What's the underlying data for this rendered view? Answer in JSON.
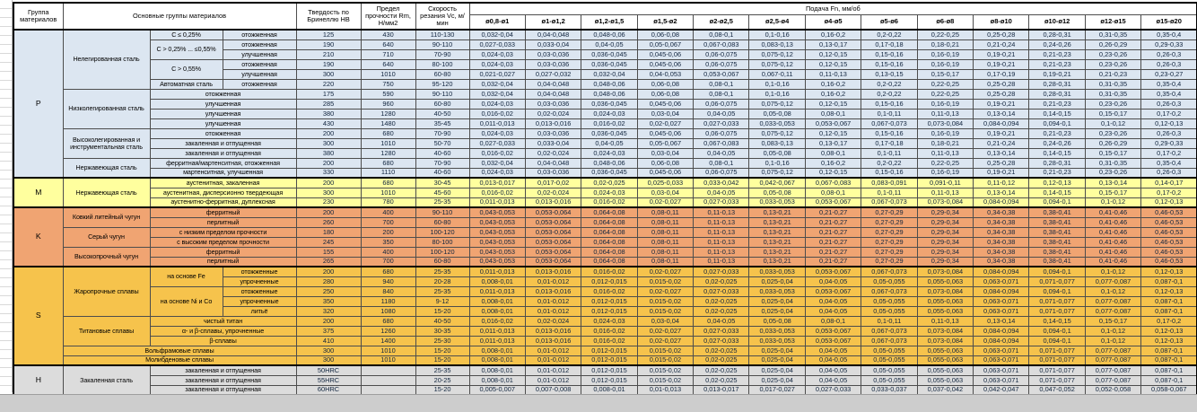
{
  "table": {
    "header": {
      "col_group": "Группа материалов",
      "col_main": "Основные группы материалов",
      "col_hardness": "Твердость по Бринеллю HB",
      "col_strength": "Предел прочности Rm, Н/мм2",
      "col_speed": "Скорость резания Vc, м/мин",
      "feed_title": "Подача Fn, мм/об",
      "feed_cols": [
        "ø0,8-ø1",
        "ø1-ø1,2",
        "ø1,2-ø1,5",
        "ø1,5-ø2",
        "ø2-ø2,5",
        "ø2,5-ø4",
        "ø4-ø5",
        "ø5-ø6",
        "ø6-ø8",
        "ø8-ø10",
        "ø10-ø12",
        "ø12-ø15",
        "ø15-ø20"
      ]
    },
    "colors": {
      "P": "#dce6f1",
      "M": "#ffff9e",
      "K": "#f0a472",
      "S": "#f6c34c",
      "H": "#dcdcdc"
    },
    "feed_patterns": {
      "A": [
        "0,032-0,04",
        "0,04-0,048",
        "0,048-0,06",
        "0,06-0,08",
        "0,08-0,1",
        "0,1-0,16",
        "0,16-0,2",
        "0,2-0,22",
        "0,22-0,25",
        "0,25-0,28",
        "0,28-0,31",
        "0,31-0,35",
        "0,35-0,4"
      ],
      "B": [
        "0,027-0,033",
        "0,033-0,04",
        "0,04-0,05",
        "0,05-0,067",
        "0,067-0,083",
        "0,083-0,13",
        "0,13-0,17",
        "0,17-0,18",
        "0,18-0,21",
        "0,21-0,24",
        "0,24-0,26",
        "0,26-0,29",
        "0,29-0,33"
      ],
      "C": [
        "0,024-0,03",
        "0,03-0,036",
        "0,036-0,045",
        "0,045-0,06",
        "0,06-0,075",
        "0,075-0,12",
        "0,12-0,15",
        "0,15-0,16",
        "0,16-0,19",
        "0,19-0,21",
        "0,21-0,23",
        "0,23-0,26",
        "0,26-0,3"
      ],
      "D": [
        "0,021-0,027",
        "0,027-0,032",
        "0,032-0,04",
        "0,04-0,053",
        "0,053-0,067",
        "0,067-0,11",
        "0,11-0,13",
        "0,13-0,15",
        "0,15-0,17",
        "0,17-0,19",
        "0,19-0,21",
        "0,21-0,23",
        "0,23-0,27"
      ],
      "E": [
        "0,016-0,02",
        "0,02-0,024",
        "0,024-0,03",
        "0,03-0,04",
        "0,04-0,05",
        "0,05-0,08",
        "0,08-0,1",
        "0,1-0,11",
        "0,11-0,13",
        "0,13-0,14",
        "0,14-0,15",
        "0,15-0,17",
        "0,17-0,2"
      ],
      "F": [
        "0,011-0,013",
        "0,013-0,016",
        "0,016-0,02",
        "0,02-0,027",
        "0,027-0,033",
        "0,033-0,053",
        "0,053-0,067",
        "0,067-0,073",
        "0,073-0,084",
        "0,084-0,094",
        "0,094-0,1",
        "0,1-0,12",
        "0,12-0,13"
      ],
      "G": [
        "0,013-0,017",
        "0,017-0,02",
        "0,02-0,025",
        "0,025-0,033",
        "0,033-0,042",
        "0,042-0,067",
        "0,067-0,083",
        "0,083-0,091",
        "0,091-0,11",
        "0,11-0,12",
        "0,12-0,13",
        "0,13-0,14",
        "0,14-0,17"
      ],
      "H": [
        "0,008-0,01",
        "0,01-0,012",
        "0,012-0,015",
        "0,015-0,02",
        "0,02-0,025",
        "0,025-0,04",
        "0,04-0,05",
        "0,05-0,055",
        "0,055-0,063",
        "0,063-0,071",
        "0,071-0,077",
        "0,077-0,087",
        "0,087-0,1"
      ],
      "K": [
        "0,043-0,053",
        "0,053-0,064",
        "0,064-0,08",
        "0,08-0,11",
        "0,11-0,13",
        "0,13-0,21",
        "0,21-0,27",
        "0,27-0,29",
        "0,29-0,34",
        "0,34-0,38",
        "0,38-0,41",
        "0,41-0,46",
        "0,46-0,53"
      ],
      "I": [
        "0,005-0,007",
        "0,007-0,008",
        "0,008-0,01",
        "0,01-0,013",
        "0,013-0,017",
        "0,017-0,027",
        "0,027-0,033",
        "0,033-0,037",
        "0,037-0,042",
        "0,042-0,047",
        "0,047-0,052",
        "0,052-0,058",
        "0,058-0,067"
      ]
    },
    "rows": [
      {
        "sec": "P",
        "top": true,
        "lead": [
          {
            "t": "P",
            "rs": 15,
            "grp": true
          },
          {
            "t": "Нелегированная сталь",
            "rs": 6
          },
          {
            "t": "C ≤ 0,25%"
          },
          {
            "t": "отожженная"
          }
        ],
        "hb": "125",
        "rm": "430",
        "vc": "110-130",
        "f": "A"
      },
      {
        "sec": "P",
        "lead": [
          {
            "t": "C > 0,25% ... ≤0,55%",
            "rs": 2
          },
          {
            "t": "отожженная"
          }
        ],
        "hb": "190",
        "rm": "640",
        "vc": "90-110",
        "f": "B"
      },
      {
        "sec": "P",
        "lead": [
          {
            "t": "улучшенная"
          }
        ],
        "hb": "210",
        "rm": "710",
        "vc": "70-90",
        "f": "C"
      },
      {
        "sec": "P",
        "lead": [
          {
            "t": "C > 0,55%",
            "rs": 2
          },
          {
            "t": "отожженная"
          }
        ],
        "hb": "190",
        "rm": "640",
        "vc": "80-100",
        "f": "C"
      },
      {
        "sec": "P",
        "lead": [
          {
            "t": "улучшенная"
          }
        ],
        "hb": "300",
        "rm": "1010",
        "vc": "60-80",
        "f": "D"
      },
      {
        "sec": "P",
        "lead": [
          {
            "t": "Автоматная сталь"
          },
          {
            "t": "отожженная"
          }
        ],
        "hb": "220",
        "rm": "750",
        "vc": "95-120",
        "f": "A"
      },
      {
        "sec": "P",
        "lead": [
          {
            "t": "Низколегированная сталь",
            "rs": 4
          },
          {
            "t": "отожженная",
            "cs": 2
          }
        ],
        "hb": "175",
        "rm": "590",
        "vc": "90-110",
        "f": "A"
      },
      {
        "sec": "P",
        "lead": [
          {
            "t": "улучшенная",
            "cs": 2
          }
        ],
        "hb": "285",
        "rm": "960",
        "vc": "60-80",
        "f": "C"
      },
      {
        "sec": "P",
        "lead": [
          {
            "t": "улучшенная",
            "cs": 2
          }
        ],
        "hb": "380",
        "rm": "1280",
        "vc": "40-50",
        "f": "E"
      },
      {
        "sec": "P",
        "lead": [
          {
            "t": "улучшенная",
            "cs": 2
          }
        ],
        "hb": "430",
        "rm": "1480",
        "vc": "35-45",
        "f": "F"
      },
      {
        "sec": "P",
        "lead": [
          {
            "t": "Высоколегированная и инструментальная сталь",
            "rs": 3
          },
          {
            "t": "отожженная",
            "cs": 2
          }
        ],
        "hb": "200",
        "rm": "680",
        "vc": "70-90",
        "f": "C"
      },
      {
        "sec": "P",
        "lead": [
          {
            "t": "закаленная и отпущенная",
            "cs": 2
          }
        ],
        "hb": "300",
        "rm": "1010",
        "vc": "50-70",
        "f": "B"
      },
      {
        "sec": "P",
        "lead": [
          {
            "t": "закаленная и отпущенная",
            "cs": 2
          }
        ],
        "hb": "380",
        "rm": "1280",
        "vc": "40-60",
        "f": "E"
      },
      {
        "sec": "P",
        "lead": [
          {
            "t": "Нержавеющая сталь",
            "rs": 2
          },
          {
            "t": "ферритная/мартенситная, отожженная",
            "cs": 2
          }
        ],
        "hb": "200",
        "rm": "680",
        "vc": "70-90",
        "f": "A"
      },
      {
        "sec": "P",
        "lead": [
          {
            "t": "мартенситная, улучшенная",
            "cs": 2
          }
        ],
        "hb": "330",
        "rm": "1110",
        "vc": "40-60",
        "f": "C"
      },
      {
        "sec": "M",
        "top": true,
        "lead": [
          {
            "t": "M",
            "rs": 3,
            "grp": true
          },
          {
            "t": "Нержавеющая сталь",
            "rs": 3
          },
          {
            "t": "аустенитная, закаленная",
            "cs": 2
          }
        ],
        "hb": "200",
        "rm": "680",
        "vc": "30-45",
        "f": "G"
      },
      {
        "sec": "M",
        "lead": [
          {
            "t": "аустенитная, дисперсионно твердеющая",
            "cs": 2
          }
        ],
        "hb": "300",
        "rm": "1010",
        "vc": "45-60",
        "f": "E"
      },
      {
        "sec": "M",
        "lead": [
          {
            "t": "аустенитно-ферритная, дуплексная",
            "cs": 2
          }
        ],
        "hb": "230",
        "rm": "780",
        "vc": "25-35",
        "f": "F"
      },
      {
        "sec": "K",
        "top": true,
        "lead": [
          {
            "t": "K",
            "rs": 6,
            "grp": true
          },
          {
            "t": "Ковкий литейный чугун",
            "rs": 2
          },
          {
            "t": "ферритный",
            "cs": 2
          }
        ],
        "hb": "200",
        "rm": "400",
        "vc": "90-110",
        "f": "K"
      },
      {
        "sec": "K",
        "lead": [
          {
            "t": "перлитный",
            "cs": 2
          }
        ],
        "hb": "260",
        "rm": "700",
        "vc": "60-80",
        "f": "K"
      },
      {
        "sec": "K",
        "lead": [
          {
            "t": "Серый чугун",
            "rs": 2
          },
          {
            "t": "с низким пределом прочности",
            "cs": 2
          }
        ],
        "hb": "180",
        "rm": "200",
        "vc": "100-120",
        "f": "K"
      },
      {
        "sec": "K",
        "lead": [
          {
            "t": "с высоким пределом прочности",
            "cs": 2
          }
        ],
        "hb": "245",
        "rm": "350",
        "vc": "80-100",
        "f": "K"
      },
      {
        "sec": "K",
        "lead": [
          {
            "t": "Высокопрочный чугун",
            "rs": 2
          },
          {
            "t": "ферритный",
            "cs": 2
          }
        ],
        "hb": "155",
        "rm": "400",
        "vc": "100-120",
        "f": "K"
      },
      {
        "sec": "K",
        "lead": [
          {
            "t": "перлитный",
            "cs": 2
          }
        ],
        "hb": "265",
        "rm": "700",
        "vc": "60-80",
        "f": "K"
      },
      {
        "sec": "S",
        "top": true,
        "lead": [
          {
            "t": "S",
            "rs": 10,
            "grp": true
          },
          {
            "t": "Жаропрочные сплавы",
            "rs": 5
          },
          {
            "t": "на основе Fe",
            "rs": 2
          },
          {
            "t": "отожженные"
          }
        ],
        "hb": "200",
        "rm": "680",
        "vc": "25-35",
        "f": "F"
      },
      {
        "sec": "S",
        "lead": [
          {
            "t": "упрочненные"
          }
        ],
        "hb": "280",
        "rm": "940",
        "vc": "20-28",
        "f": "H"
      },
      {
        "sec": "S",
        "lead": [
          {
            "t": "на основе Ni и Co",
            "rs": 3
          },
          {
            "t": "отожженные"
          }
        ],
        "hb": "250",
        "rm": "840",
        "vc": "25-35",
        "f": "F"
      },
      {
        "sec": "S",
        "lead": [
          {
            "t": "упрочненные"
          }
        ],
        "hb": "350",
        "rm": "1180",
        "vc": "9-12",
        "f": "H"
      },
      {
        "sec": "S",
        "lead": [
          {
            "t": "литьё"
          }
        ],
        "hb": "320",
        "rm": "1080",
        "vc": "15-20",
        "f": "H"
      },
      {
        "sec": "S",
        "lead": [
          {
            "t": "Титановые сплавы",
            "rs": 3
          },
          {
            "t": "чистый титан",
            "cs": 2
          }
        ],
        "hb": "200",
        "rm": "680",
        "vc": "40-50",
        "f": "E"
      },
      {
        "sec": "S",
        "lead": [
          {
            "t": "α- и β-сплавы, упрочненные",
            "cs": 2
          }
        ],
        "hb": "375",
        "rm": "1260",
        "vc": "30-35",
        "f": "F"
      },
      {
        "sec": "S",
        "lead": [
          {
            "t": "β-сплавы",
            "cs": 2
          }
        ],
        "hb": "410",
        "rm": "1400",
        "vc": "25-30",
        "f": "F"
      },
      {
        "sec": "S",
        "lead": [
          {
            "t": "Вольфрамовые сплавы",
            "cs": 3
          }
        ],
        "hb": "300",
        "rm": "1010",
        "vc": "15-20",
        "f": "H"
      },
      {
        "sec": "S",
        "lead": [
          {
            "t": "Молибденовые сплавы",
            "cs": 3
          }
        ],
        "hb": "300",
        "rm": "1010",
        "vc": "15-20",
        "f": "H"
      },
      {
        "sec": "H",
        "top": true,
        "lead": [
          {
            "t": "H",
            "rs": 3,
            "grp": true
          },
          {
            "t": "Закаленная сталь",
            "rs": 3
          },
          {
            "t": "закаленная и отпущенная",
            "cs": 2
          }
        ],
        "hb": "50HRC",
        "rm": "",
        "vc": "25-35",
        "f": "H"
      },
      {
        "sec": "H",
        "lead": [
          {
            "t": "закаленная и отпущенная",
            "cs": 2
          }
        ],
        "hb": "55HRC",
        "rm": "",
        "vc": "20-25",
        "f": "H"
      },
      {
        "sec": "H",
        "lead": [
          {
            "t": "закаленная и отпущенная",
            "cs": 2
          }
        ],
        "hb": "60HRC",
        "rm": "",
        "vc": "15-20",
        "f": "I"
      }
    ]
  }
}
